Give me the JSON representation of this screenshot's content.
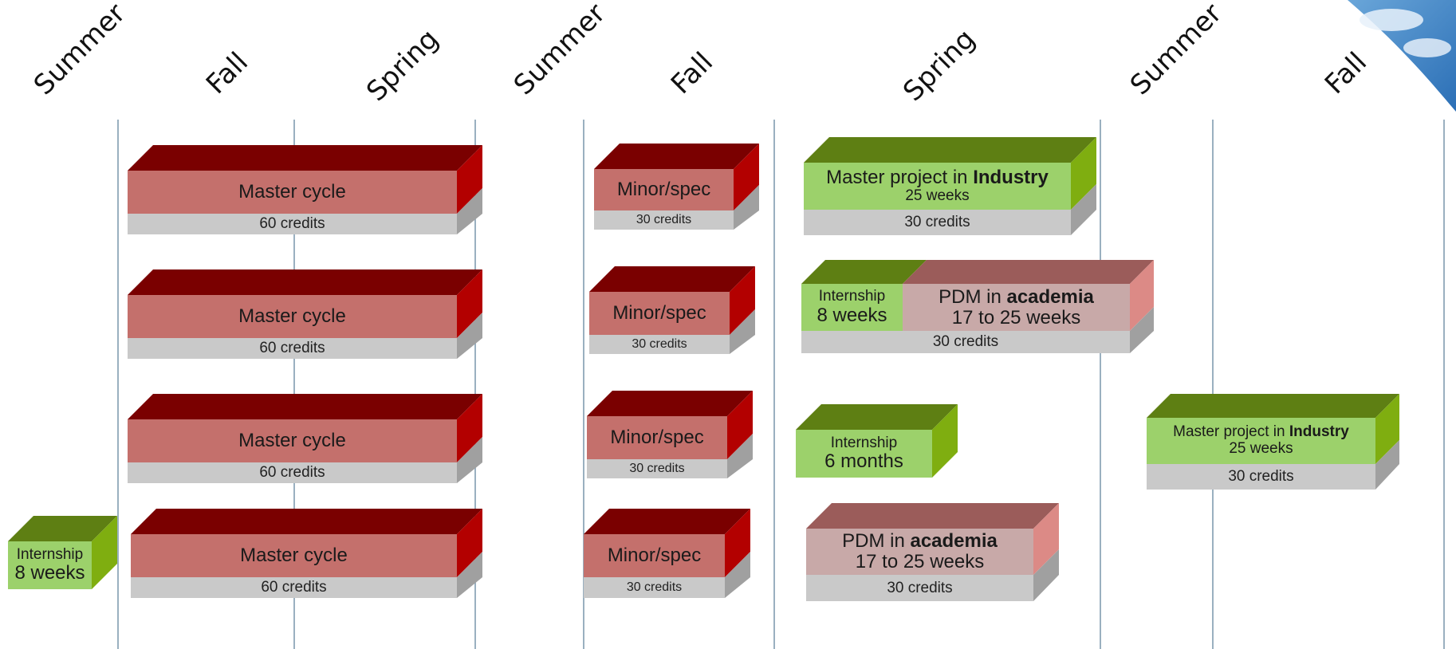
{
  "seasons": [
    {
      "label": "Summer"
    },
    {
      "label": "Fall"
    },
    {
      "label": "Spring"
    },
    {
      "label": "Summer"
    },
    {
      "label": "Fall"
    },
    {
      "label": "Spring"
    },
    {
      "label": "Summer"
    },
    {
      "label": "Fall"
    }
  ],
  "blocks": {
    "master": [
      {
        "title": "Master cycle",
        "credits": "60 credits"
      },
      {
        "title": "Master cycle",
        "credits": "60 credits"
      },
      {
        "title": "Master cycle",
        "credits": "60 credits"
      },
      {
        "title": "Master cycle",
        "credits": "60 credits"
      }
    ],
    "minor": [
      {
        "title": "Minor/spec",
        "credits": "30 credits"
      },
      {
        "title": "Minor/spec",
        "credits": "30 credits"
      },
      {
        "title": "Minor/spec",
        "credits": "30 credits"
      },
      {
        "title": "Minor/spec",
        "credits": "30 credits"
      }
    ],
    "industry_1": {
      "prefix": "Master project in ",
      "bold": "Industry",
      "sub": "25 weeks",
      "credits": "30 credits"
    },
    "combo": {
      "internship_title": "Internship",
      "internship_sub": "8 weeks",
      "pdm_prefix": "PDM in ",
      "pdm_bold": "academia",
      "pdm_sub": "17 to 25 weeks",
      "credits": "30 credits"
    },
    "internship_6m": {
      "title": "Internship",
      "sub": "6 months"
    },
    "industry_2": {
      "prefix": "Master project in ",
      "bold": "Industry",
      "sub": "25 weeks",
      "credits": "30 credits"
    },
    "pdm_2": {
      "prefix": "PDM in ",
      "bold": "academia",
      "sub": "17 to 25 weeks",
      "credits": "30 credits"
    },
    "internship_8w": {
      "title": "Internship",
      "sub": "8 weeks"
    }
  },
  "colors": {
    "red_front": "#c4706c",
    "red_top": "#7a0000",
    "red_side": "#b30000",
    "green_front": "#9cd16b",
    "green_top": "#5e7f13",
    "green_side": "#7fae10",
    "rose_front": "#c8a9a8",
    "rose_top": "#9b5c5a",
    "rose_side": "#dc8a86",
    "gray_front": "#c9c9c9",
    "gray_side": "#a0a0a0",
    "line": "#9ab0c0"
  }
}
